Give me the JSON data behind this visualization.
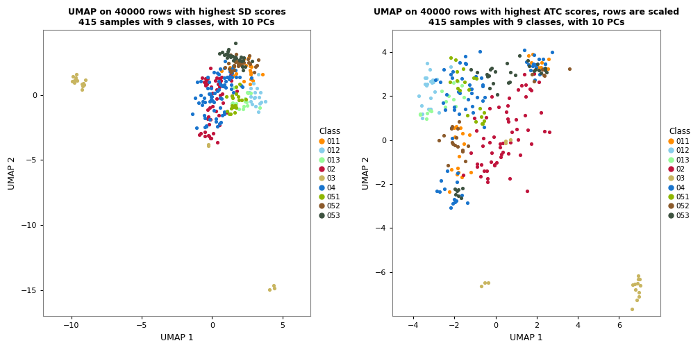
{
  "title1": "UMAP on 40000 rows with highest SD scores\n415 samples with 9 classes, with 10 PCs",
  "title2": "UMAP on 40000 rows with highest ATC scores, rows are scaled\n415 samples with 9 classes, with 10 PCs",
  "xlabel": "UMAP 1",
  "ylabel": "UMAP 2",
  "classes": [
    "011",
    "012",
    "013",
    "02",
    "03",
    "04",
    "051",
    "052",
    "053"
  ],
  "colors": {
    "011": "#FF8C00",
    "012": "#87CEEB",
    "013": "#98FB98",
    "02": "#C0143C",
    "03": "#C8B560",
    "04": "#1874CD",
    "051": "#8DB600",
    "052": "#8B5A2B",
    "053": "#3D5240"
  },
  "plot1_xlim": [
    -12,
    7
  ],
  "plot1_ylim": [
    -17,
    5
  ],
  "plot1_xticks": [
    -10,
    -5,
    0,
    5
  ],
  "plot1_yticks": [
    0,
    -5,
    -10,
    -15
  ],
  "plot2_xlim": [
    -5,
    8
  ],
  "plot2_ylim": [
    -8,
    5
  ],
  "plot2_xticks": [
    -4,
    -2,
    0,
    2,
    4,
    6
  ],
  "plot2_yticks": [
    4,
    2,
    0,
    -2,
    -4,
    -6
  ],
  "point_size": 14,
  "bg_color": "#FFFFFF",
  "panel_bg": "#FFFFFF",
  "border_color": "#808080"
}
